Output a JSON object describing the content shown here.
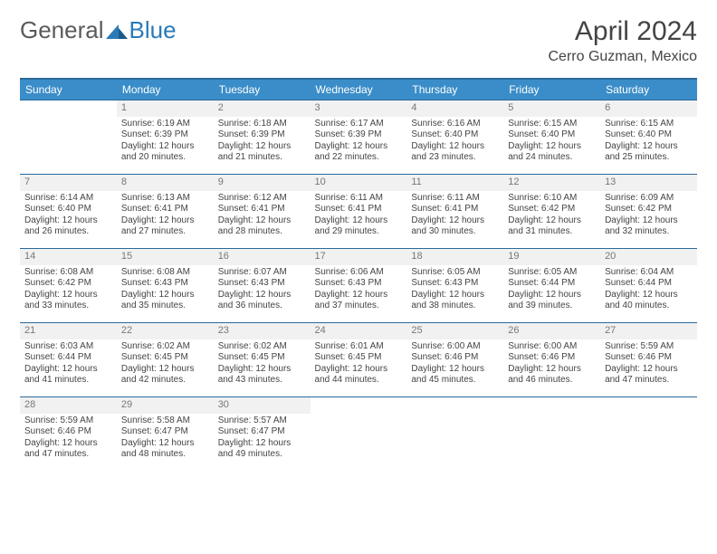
{
  "logo": {
    "general": "General",
    "blue": "Blue"
  },
  "title": "April 2024",
  "location": "Cerro Guzman, Mexico",
  "colors": {
    "header_bg": "#3a8dc8",
    "header_border": "#2a6a9a",
    "cell_border": "#2a6a9a",
    "daynum_bg": "#f1f1f1",
    "text": "#444444"
  },
  "day_headers": [
    "Sunday",
    "Monday",
    "Tuesday",
    "Wednesday",
    "Thursday",
    "Friday",
    "Saturday"
  ],
  "weeks": [
    [
      {
        "n": "",
        "sr": "",
        "ss": "",
        "dl1": "",
        "dl2": ""
      },
      {
        "n": "1",
        "sr": "Sunrise: 6:19 AM",
        "ss": "Sunset: 6:39 PM",
        "dl1": "Daylight: 12 hours",
        "dl2": "and 20 minutes."
      },
      {
        "n": "2",
        "sr": "Sunrise: 6:18 AM",
        "ss": "Sunset: 6:39 PM",
        "dl1": "Daylight: 12 hours",
        "dl2": "and 21 minutes."
      },
      {
        "n": "3",
        "sr": "Sunrise: 6:17 AM",
        "ss": "Sunset: 6:39 PM",
        "dl1": "Daylight: 12 hours",
        "dl2": "and 22 minutes."
      },
      {
        "n": "4",
        "sr": "Sunrise: 6:16 AM",
        "ss": "Sunset: 6:40 PM",
        "dl1": "Daylight: 12 hours",
        "dl2": "and 23 minutes."
      },
      {
        "n": "5",
        "sr": "Sunrise: 6:15 AM",
        "ss": "Sunset: 6:40 PM",
        "dl1": "Daylight: 12 hours",
        "dl2": "and 24 minutes."
      },
      {
        "n": "6",
        "sr": "Sunrise: 6:15 AM",
        "ss": "Sunset: 6:40 PM",
        "dl1": "Daylight: 12 hours",
        "dl2": "and 25 minutes."
      }
    ],
    [
      {
        "n": "7",
        "sr": "Sunrise: 6:14 AM",
        "ss": "Sunset: 6:40 PM",
        "dl1": "Daylight: 12 hours",
        "dl2": "and 26 minutes."
      },
      {
        "n": "8",
        "sr": "Sunrise: 6:13 AM",
        "ss": "Sunset: 6:41 PM",
        "dl1": "Daylight: 12 hours",
        "dl2": "and 27 minutes."
      },
      {
        "n": "9",
        "sr": "Sunrise: 6:12 AM",
        "ss": "Sunset: 6:41 PM",
        "dl1": "Daylight: 12 hours",
        "dl2": "and 28 minutes."
      },
      {
        "n": "10",
        "sr": "Sunrise: 6:11 AM",
        "ss": "Sunset: 6:41 PM",
        "dl1": "Daylight: 12 hours",
        "dl2": "and 29 minutes."
      },
      {
        "n": "11",
        "sr": "Sunrise: 6:11 AM",
        "ss": "Sunset: 6:41 PM",
        "dl1": "Daylight: 12 hours",
        "dl2": "and 30 minutes."
      },
      {
        "n": "12",
        "sr": "Sunrise: 6:10 AM",
        "ss": "Sunset: 6:42 PM",
        "dl1": "Daylight: 12 hours",
        "dl2": "and 31 minutes."
      },
      {
        "n": "13",
        "sr": "Sunrise: 6:09 AM",
        "ss": "Sunset: 6:42 PM",
        "dl1": "Daylight: 12 hours",
        "dl2": "and 32 minutes."
      }
    ],
    [
      {
        "n": "14",
        "sr": "Sunrise: 6:08 AM",
        "ss": "Sunset: 6:42 PM",
        "dl1": "Daylight: 12 hours",
        "dl2": "and 33 minutes."
      },
      {
        "n": "15",
        "sr": "Sunrise: 6:08 AM",
        "ss": "Sunset: 6:43 PM",
        "dl1": "Daylight: 12 hours",
        "dl2": "and 35 minutes."
      },
      {
        "n": "16",
        "sr": "Sunrise: 6:07 AM",
        "ss": "Sunset: 6:43 PM",
        "dl1": "Daylight: 12 hours",
        "dl2": "and 36 minutes."
      },
      {
        "n": "17",
        "sr": "Sunrise: 6:06 AM",
        "ss": "Sunset: 6:43 PM",
        "dl1": "Daylight: 12 hours",
        "dl2": "and 37 minutes."
      },
      {
        "n": "18",
        "sr": "Sunrise: 6:05 AM",
        "ss": "Sunset: 6:43 PM",
        "dl1": "Daylight: 12 hours",
        "dl2": "and 38 minutes."
      },
      {
        "n": "19",
        "sr": "Sunrise: 6:05 AM",
        "ss": "Sunset: 6:44 PM",
        "dl1": "Daylight: 12 hours",
        "dl2": "and 39 minutes."
      },
      {
        "n": "20",
        "sr": "Sunrise: 6:04 AM",
        "ss": "Sunset: 6:44 PM",
        "dl1": "Daylight: 12 hours",
        "dl2": "and 40 minutes."
      }
    ],
    [
      {
        "n": "21",
        "sr": "Sunrise: 6:03 AM",
        "ss": "Sunset: 6:44 PM",
        "dl1": "Daylight: 12 hours",
        "dl2": "and 41 minutes."
      },
      {
        "n": "22",
        "sr": "Sunrise: 6:02 AM",
        "ss": "Sunset: 6:45 PM",
        "dl1": "Daylight: 12 hours",
        "dl2": "and 42 minutes."
      },
      {
        "n": "23",
        "sr": "Sunrise: 6:02 AM",
        "ss": "Sunset: 6:45 PM",
        "dl1": "Daylight: 12 hours",
        "dl2": "and 43 minutes."
      },
      {
        "n": "24",
        "sr": "Sunrise: 6:01 AM",
        "ss": "Sunset: 6:45 PM",
        "dl1": "Daylight: 12 hours",
        "dl2": "and 44 minutes."
      },
      {
        "n": "25",
        "sr": "Sunrise: 6:00 AM",
        "ss": "Sunset: 6:46 PM",
        "dl1": "Daylight: 12 hours",
        "dl2": "and 45 minutes."
      },
      {
        "n": "26",
        "sr": "Sunrise: 6:00 AM",
        "ss": "Sunset: 6:46 PM",
        "dl1": "Daylight: 12 hours",
        "dl2": "and 46 minutes."
      },
      {
        "n": "27",
        "sr": "Sunrise: 5:59 AM",
        "ss": "Sunset: 6:46 PM",
        "dl1": "Daylight: 12 hours",
        "dl2": "and 47 minutes."
      }
    ],
    [
      {
        "n": "28",
        "sr": "Sunrise: 5:59 AM",
        "ss": "Sunset: 6:46 PM",
        "dl1": "Daylight: 12 hours",
        "dl2": "and 47 minutes."
      },
      {
        "n": "29",
        "sr": "Sunrise: 5:58 AM",
        "ss": "Sunset: 6:47 PM",
        "dl1": "Daylight: 12 hours",
        "dl2": "and 48 minutes."
      },
      {
        "n": "30",
        "sr": "Sunrise: 5:57 AM",
        "ss": "Sunset: 6:47 PM",
        "dl1": "Daylight: 12 hours",
        "dl2": "and 49 minutes."
      },
      {
        "n": "",
        "sr": "",
        "ss": "",
        "dl1": "",
        "dl2": ""
      },
      {
        "n": "",
        "sr": "",
        "ss": "",
        "dl1": "",
        "dl2": ""
      },
      {
        "n": "",
        "sr": "",
        "ss": "",
        "dl1": "",
        "dl2": ""
      },
      {
        "n": "",
        "sr": "",
        "ss": "",
        "dl1": "",
        "dl2": ""
      }
    ]
  ]
}
